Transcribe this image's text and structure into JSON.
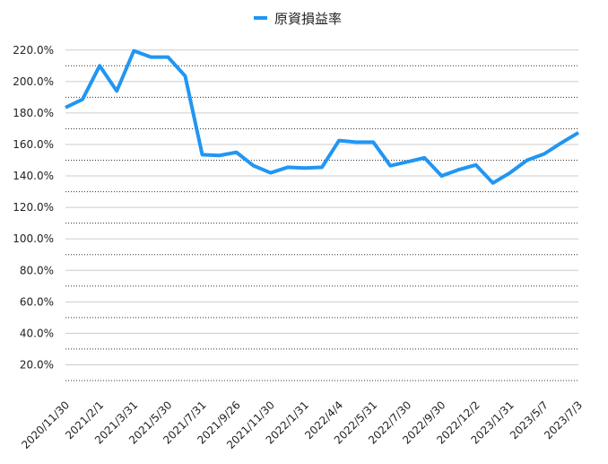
{
  "chart_data": {
    "type": "line",
    "categories": [
      "2020/11/30",
      null,
      "2021/2/1",
      null,
      "2021/3/31",
      null,
      "2021/5/30",
      null,
      "2021/7/31",
      null,
      "2021/9/26",
      null,
      "2021/11/30",
      null,
      "2022/1/31",
      null,
      "2022/4/4",
      null,
      "2022/5/31",
      null,
      "2022/7/30",
      null,
      "2022/9/30",
      null,
      "2022/12/2",
      null,
      "2023/1/31",
      null,
      "2023/5/7",
      null,
      "2023/7/3"
    ],
    "series": [
      {
        "name": "原資損益率",
        "color": "#2196f3",
        "values": [
          183.5,
          188.7,
          210,
          194,
          219.5,
          215.5,
          215.5,
          203.5,
          153.5,
          153,
          155,
          146.5,
          142,
          145.5,
          145,
          145.5,
          162.5,
          161.5,
          161.5,
          146.5,
          149,
          151.5,
          140,
          144,
          147,
          135.5,
          142,
          150,
          154,
          161,
          167.5
        ]
      }
    ],
    "ylim": [
      10,
      225
    ],
    "yticks": [
      {
        "value": 20,
        "label": "20.0%"
      },
      {
        "value": 40,
        "label": "40.0%"
      },
      {
        "value": 60,
        "label": "60.0%"
      },
      {
        "value": 80,
        "label": "80.0%"
      },
      {
        "value": 100,
        "label": "100.0%"
      },
      {
        "value": 120,
        "label": "120.0%"
      },
      {
        "value": 140,
        "label": "140.0%"
      },
      {
        "value": 160,
        "label": "160.0%"
      },
      {
        "value": 180,
        "label": "180.0%"
      },
      {
        "value": 200,
        "label": "200.0%"
      },
      {
        "value": 220,
        "label": "220.0%"
      }
    ],
    "minor_yticks": [
      10,
      30,
      50,
      70,
      90,
      110,
      130,
      150,
      170,
      190,
      210
    ],
    "grid": true,
    "legend": "top"
  }
}
